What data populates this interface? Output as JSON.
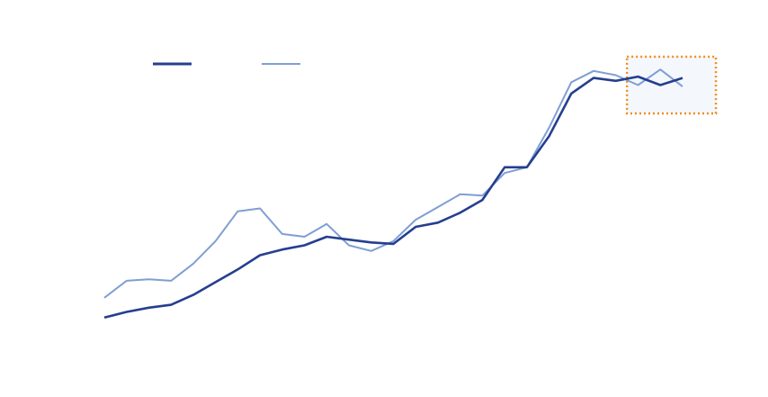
{
  "colors": {
    "series_1": "#253f8f",
    "series_2": "#7f9ed4",
    "highlight_border": "#f28c1e",
    "highlight_fill": "#f4f8fc",
    "background": "#ffffff"
  },
  "chart_data": {
    "type": "line",
    "title": "",
    "xlabel": "",
    "ylabel": "",
    "grid": false,
    "legend_position": "top-left",
    "x": [
      1,
      2,
      3,
      4,
      5,
      6,
      7,
      8,
      9,
      10,
      11,
      12,
      13,
      14,
      15,
      16,
      17,
      18,
      19,
      20,
      21,
      22,
      23,
      24,
      25,
      26,
      27
    ],
    "xlim": [
      1,
      27
    ],
    "ylim": [
      0,
      100
    ],
    "series": [
      {
        "name": "",
        "values": [
          8.0,
          10.0,
          11.5,
          12.5,
          16.0,
          20.5,
          25.0,
          30.0,
          32.0,
          33.5,
          36.5,
          35.5,
          34.5,
          34.0,
          40.0,
          41.5,
          45.0,
          49.5,
          61.0,
          61.0,
          72.0,
          87.0,
          92.5,
          91.5,
          93.0,
          90.0,
          92.5
        ]
      },
      {
        "name": "",
        "values": [
          15.0,
          21.0,
          21.5,
          21.0,
          27.0,
          35.0,
          45.5,
          46.5,
          37.5,
          36.5,
          41.0,
          33.5,
          31.5,
          35.0,
          42.5,
          47.0,
          51.5,
          51.0,
          59.0,
          61.0,
          75.0,
          91.0,
          95.0,
          93.5,
          90.0,
          95.5,
          89.5
        ]
      }
    ],
    "highlight": {
      "x_range": [
        24.5,
        28.5
      ],
      "y_range": [
        80,
        100
      ]
    }
  }
}
